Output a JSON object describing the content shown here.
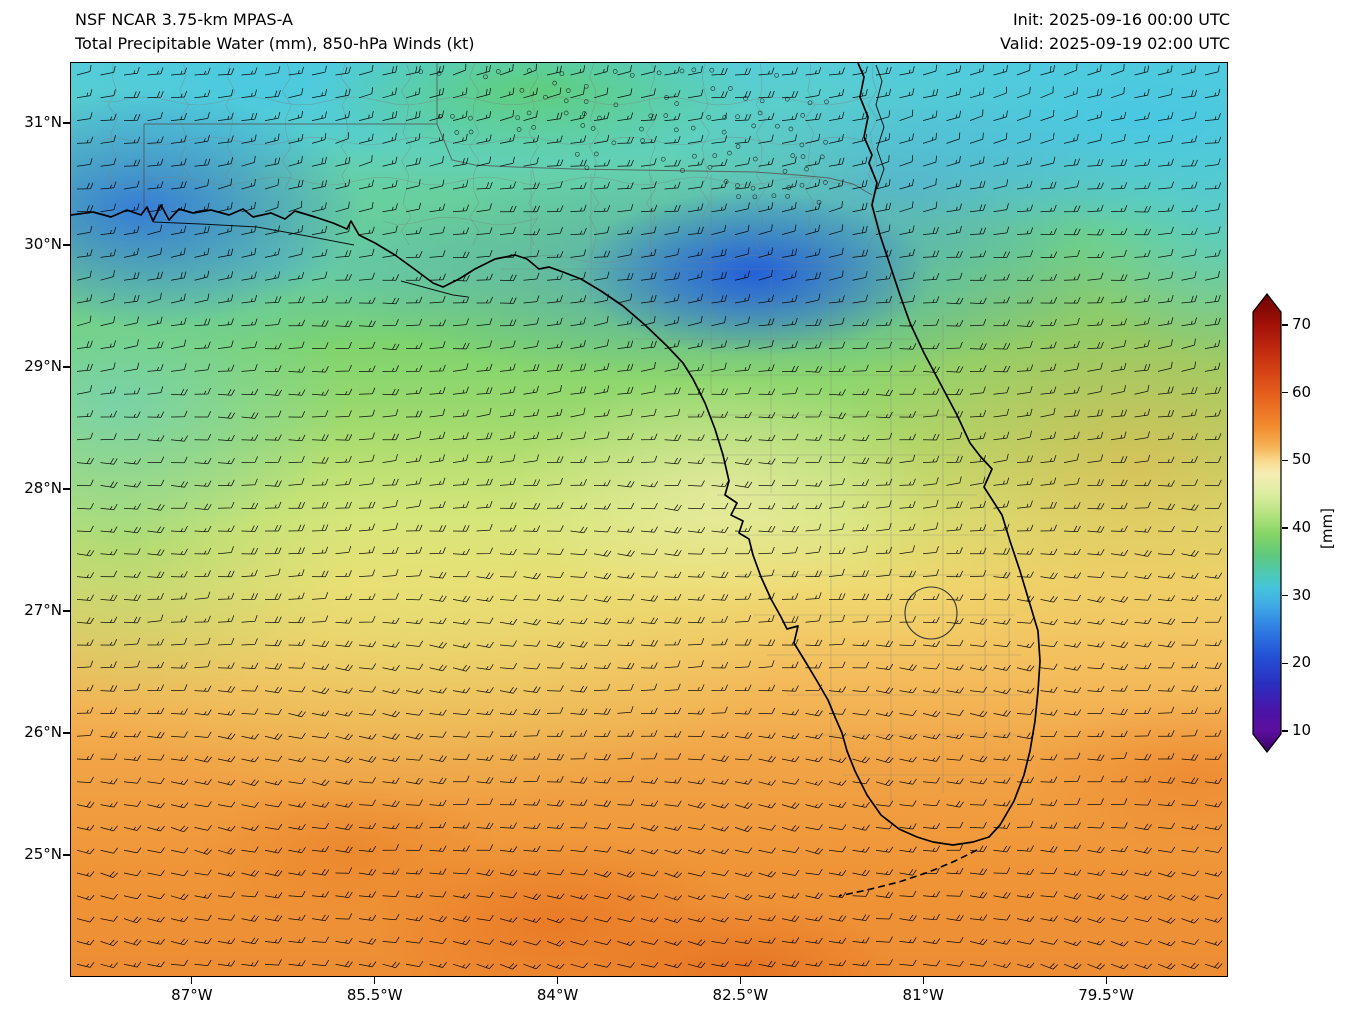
{
  "header": {
    "model": "NSF NCAR 3.75-km MPAS-A",
    "product": "Total Precipitable Water (mm), 850-hPa Winds (kt)",
    "init": "Init: 2025-09-16 00:00 UTC",
    "valid": "Valid: 2025-09-19 02:00 UTC"
  },
  "axes": {
    "lat_ticks": [
      {
        "label": "31°N",
        "value": 31
      },
      {
        "label": "30°N",
        "value": 30
      },
      {
        "label": "29°N",
        "value": 29
      },
      {
        "label": "28°N",
        "value": 28
      },
      {
        "label": "27°N",
        "value": 27
      },
      {
        "label": "26°N",
        "value": 26
      },
      {
        "label": "25°N",
        "value": 25
      }
    ],
    "lon_ticks": [
      {
        "label": "87°W",
        "value": -87
      },
      {
        "label": "85.5°W",
        "value": -85.5
      },
      {
        "label": "84°W",
        "value": -84
      },
      {
        "label": "82.5°W",
        "value": -82.5
      },
      {
        "label": "81°W",
        "value": -81
      },
      {
        "label": "79.5°W",
        "value": -79.5
      }
    ]
  },
  "colorbar": {
    "label": "[mm]",
    "ticks": [
      70,
      60,
      50,
      40,
      30,
      20,
      10
    ],
    "arrow_top_color": "#6f0202",
    "arrow_bottom_color": "#38005f",
    "stops": [
      {
        "v": 72,
        "c": "#8a0b06"
      },
      {
        "v": 70,
        "c": "#a31008"
      },
      {
        "v": 65,
        "c": "#c93511"
      },
      {
        "v": 60,
        "c": "#e55c1c"
      },
      {
        "v": 55,
        "c": "#f28b2e"
      },
      {
        "v": 52,
        "c": "#f6b355"
      },
      {
        "v": 50,
        "c": "#f8d98c"
      },
      {
        "v": 48,
        "c": "#f6edb4"
      },
      {
        "v": 45,
        "c": "#dceda0"
      },
      {
        "v": 42,
        "c": "#b4e27f"
      },
      {
        "v": 39,
        "c": "#84d465"
      },
      {
        "v": 36,
        "c": "#5fc97d"
      },
      {
        "v": 33,
        "c": "#4cc9b8"
      },
      {
        "v": 31,
        "c": "#45c3dd"
      },
      {
        "v": 28,
        "c": "#3da3e6"
      },
      {
        "v": 25,
        "c": "#2f7ce2"
      },
      {
        "v": 21,
        "c": "#2450d6"
      },
      {
        "v": 17,
        "c": "#2b2fc0"
      },
      {
        "v": 13,
        "c": "#4a14a8"
      },
      {
        "v": 10,
        "c": "#5c0f9e"
      }
    ]
  },
  "chart_data": {
    "type": "heatmap",
    "title": "Total Precipitable Water (mm), 850-hPa Winds (kt)",
    "model": "NSF NCAR 3.75-km MPAS-A",
    "init_time": "2025-09-16 00:00 UTC",
    "valid_time": "2025-09-19 02:00 UTC",
    "units": "mm",
    "lon_range_deg_w": [
      88.0,
      78.5
    ],
    "lat_range_deg_n": [
      24.0,
      31.5
    ],
    "colorbar_range": [
      10,
      70
    ],
    "grid_lats_n": [
      31,
      30,
      29,
      28,
      27,
      26,
      25
    ],
    "grid_lons_w": [
      87,
      85.5,
      84,
      82.5,
      81,
      79.5
    ],
    "tpw_mm_estimates": [
      [
        30,
        38,
        40,
        34,
        28,
        32
      ],
      [
        27,
        33,
        36,
        24,
        30,
        35
      ],
      [
        33,
        38,
        40,
        40,
        44,
        48
      ],
      [
        38,
        42,
        45,
        48,
        50,
        52
      ],
      [
        42,
        45,
        48,
        50,
        52,
        54
      ],
      [
        45,
        48,
        52,
        53,
        53,
        54
      ],
      [
        48,
        52,
        54,
        55,
        54,
        55
      ]
    ],
    "features": [
      "TPW minimum (~20-25 mm, deep blue) over south Georgia / north-central Florida near 30N 82.5W",
      "Dry band (~25-30 mm) along the northern Gulf coast near 30N 87-88W",
      "Moist air (50-57 mm, orange) over South Florida and adjacent waters south of ~27N",
      "Cyan Atlantic band (~30-33 mm) across the northeast corner of the domain",
      "Stippled (dotted) region over south Georgia in the green 35-40 mm band"
    ],
    "winds_summary": "850-hPa wind barbs, predominantly easterly 10-20 kt across the domain"
  }
}
